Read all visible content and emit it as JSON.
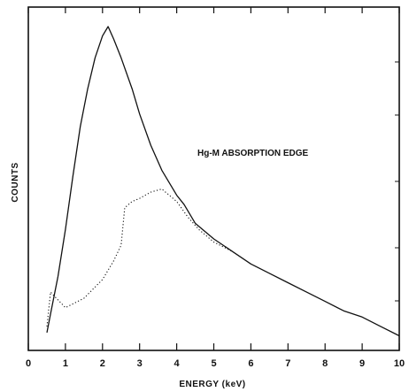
{
  "chart_data": {
    "type": "line",
    "title": "",
    "xlabel": "ENERGY (keV)",
    "ylabel": "COUNTS",
    "xlim": [
      0,
      10
    ],
    "x_ticks": [
      "0",
      "1",
      "2",
      "3",
      "4",
      "5",
      "6",
      "7",
      "8",
      "9",
      "10"
    ],
    "y_ticks_labeled": false,
    "grid": false,
    "annotations": [
      "Hg-M ABSORPTION EDGE"
    ],
    "series": [
      {
        "style": "solid",
        "x": [
          0.5,
          0.6,
          0.8,
          1.0,
          1.2,
          1.4,
          1.6,
          1.8,
          2.0,
          2.15,
          2.3,
          2.5,
          2.8,
          3.0,
          3.3,
          3.6,
          4.0,
          4.2,
          4.5,
          5.0,
          5.5,
          6.0,
          6.5,
          7.0,
          7.5,
          8.0,
          8.5,
          9.0,
          9.5,
          10.0
        ],
        "y": [
          0.02,
          0.08,
          0.2,
          0.35,
          0.52,
          0.68,
          0.8,
          0.9,
          0.97,
          1.0,
          0.96,
          0.9,
          0.8,
          0.72,
          0.62,
          0.54,
          0.46,
          0.43,
          0.37,
          0.32,
          0.28,
          0.24,
          0.21,
          0.18,
          0.15,
          0.12,
          0.09,
          0.07,
          0.04,
          0.01
        ]
      },
      {
        "style": "dotted",
        "x": [
          0.5,
          0.6,
          1.0,
          1.5,
          2.0,
          2.3,
          2.5,
          2.6,
          2.8,
          3.0,
          3.3,
          3.6,
          4.0,
          4.3,
          4.6,
          5.0,
          5.5
        ],
        "y": [
          0.04,
          0.15,
          0.1,
          0.13,
          0.19,
          0.25,
          0.3,
          0.42,
          0.44,
          0.45,
          0.47,
          0.48,
          0.44,
          0.39,
          0.35,
          0.31,
          0.28
        ]
      }
    ]
  }
}
